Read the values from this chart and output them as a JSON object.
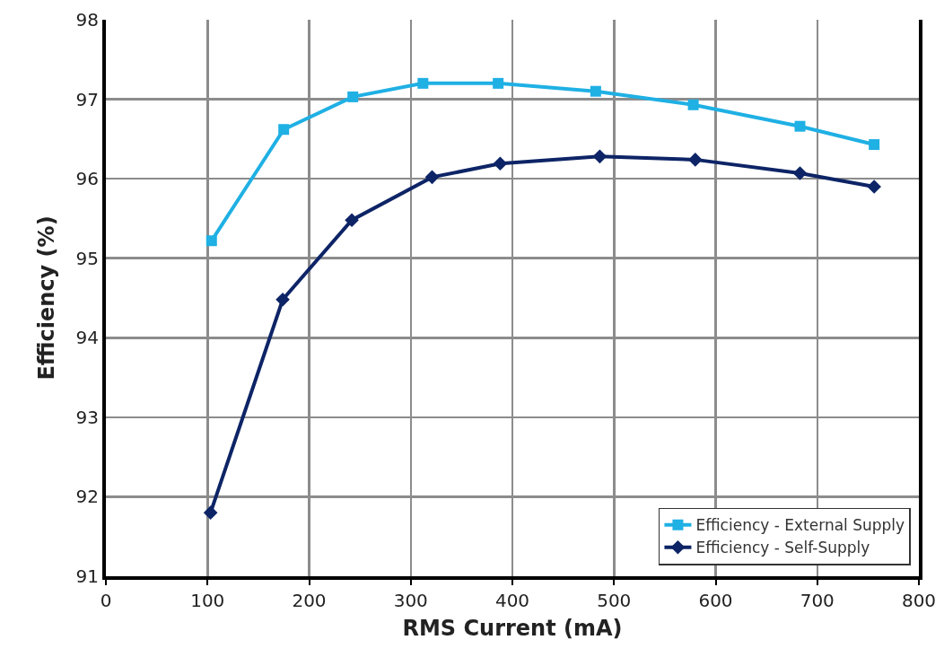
{
  "chart_data": {
    "type": "line",
    "xlabel": "RMS Current (mA)",
    "ylabel": "Efficiency (%)",
    "xlim": [
      0,
      800
    ],
    "xticks": [
      0,
      100,
      200,
      300,
      400,
      500,
      600,
      700,
      800
    ],
    "ylim": [
      91,
      98
    ],
    "yticks": [
      91,
      92,
      93,
      94,
      95,
      96,
      97,
      98
    ],
    "grid": true,
    "legend": "bottom right",
    "line_style": "solid",
    "series": [
      {
        "name": "Efficiency - External Supply",
        "color": "#1fb0e4",
        "marker": "square",
        "x": [
          104,
          175,
          243,
          312,
          386,
          482,
          578,
          683,
          756
        ],
        "values": [
          95.22,
          96.62,
          97.03,
          97.2,
          97.2,
          97.1,
          96.93,
          96.66,
          96.43
        ]
      },
      {
        "name": "Efficiency - Self-Supply",
        "color": "#0d2466",
        "marker": "diamond",
        "x": [
          103,
          174,
          242,
          321,
          388,
          486,
          580,
          683,
          756
        ],
        "values": [
          91.8,
          94.48,
          95.48,
          96.02,
          96.19,
          96.28,
          96.24,
          96.07,
          95.9
        ]
      }
    ]
  }
}
